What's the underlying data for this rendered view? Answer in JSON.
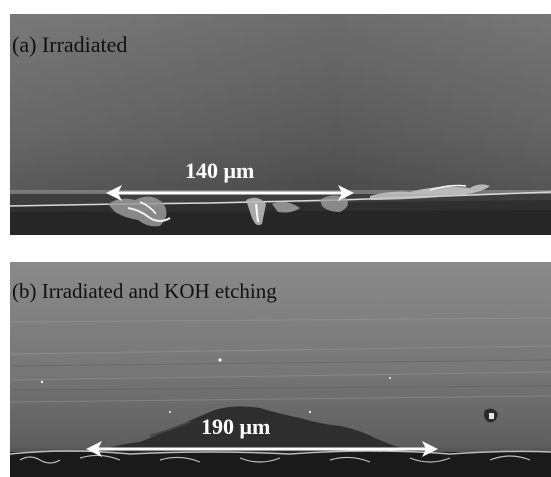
{
  "panels": [
    {
      "label": "(a) Irradiated",
      "scale_label": "140 μm"
    },
    {
      "label": "(b) Irradiated and KOH etching",
      "scale_label": "190 μm"
    }
  ]
}
